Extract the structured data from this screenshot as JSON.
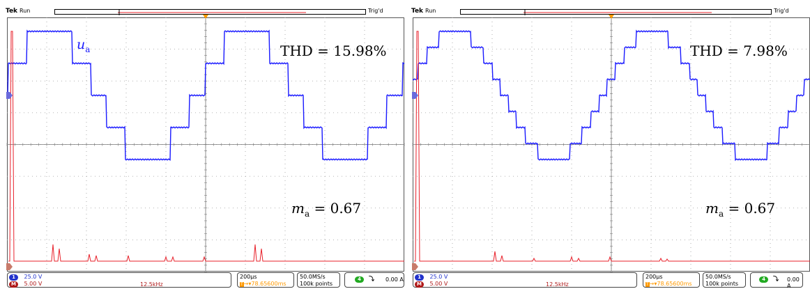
{
  "panels": [
    {
      "id": "left",
      "brand": "Tek",
      "run_state": "Run",
      "trigger_state": "Trig'd",
      "signal_label": "u",
      "signal_sub": "a",
      "thd_text": "THD = 15.98%",
      "ma_text": "= 0.67",
      "ma_symbol": "m",
      "ma_sub": "a",
      "levels": 5,
      "status": {
        "ch1_num": "1",
        "ch1_scale": "25.0 V",
        "math_letter": "M",
        "math_scale": "5.00 V",
        "math_freq": "12.5kHz",
        "timebase": "200µs",
        "trigger_pos": "78.65600ms",
        "sample_rate": "50.0MS/s",
        "record_len": "100k points",
        "trig_ch": "4",
        "trig_level": "0.00 A"
      }
    },
    {
      "id": "right",
      "brand": "Tek",
      "run_state": "Run",
      "trigger_state": "Trig'd",
      "thd_text": "THD = 7.98%",
      "ma_text": "= 0.67",
      "ma_symbol": "m",
      "ma_sub": "a",
      "levels": 9,
      "status": {
        "ch1_num": "1",
        "ch1_scale": "25.0 V",
        "math_letter": "M",
        "math_scale": "5.00 V",
        "math_freq": "12.5kHz",
        "timebase": "200µs",
        "trigger_pos": "78.65600ms",
        "sample_rate": "50.0MS/s",
        "record_len": "100k points",
        "trig_ch": "4",
        "trig_level": "0.00 A"
      }
    }
  ],
  "colors": {
    "waveform": "#1a1aff",
    "spectrum": "#e8202a",
    "grid": "#9a9a9a",
    "ch1_badge": "#2233cc",
    "math_badge": "#b01a1a",
    "trig_badge": "#22aa22",
    "trigger_marker": "#ff9900",
    "math_text": "#b01a1a",
    "trigger_text": "#ff9900"
  },
  "icons": [
    "ch1-ground-marker-icon",
    "math-ground-marker-icon",
    "trigger-position-icon",
    "trigger-slope-icon"
  ]
}
